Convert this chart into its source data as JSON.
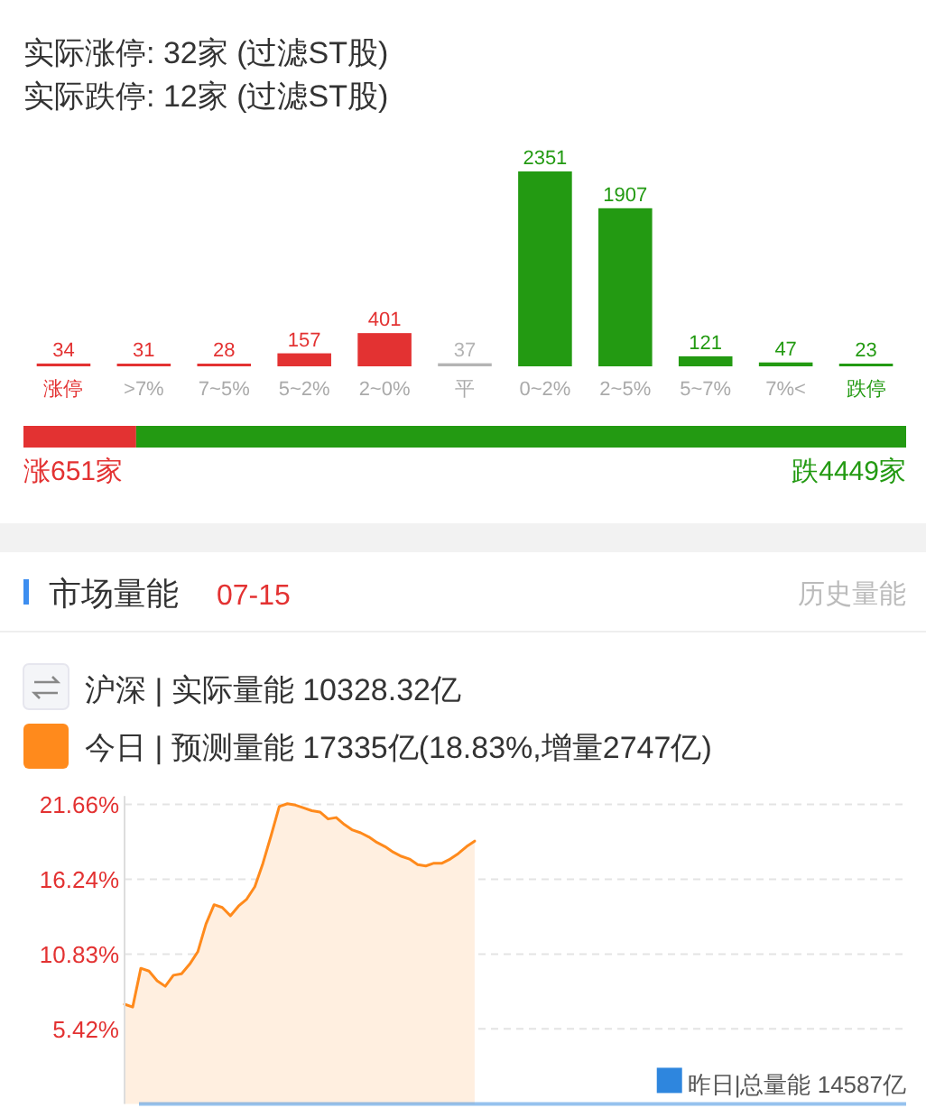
{
  "chart_data": [
    {
      "type": "bar",
      "annotations": [
        "实际涨停: 32家 (过滤ST股)",
        "实际跌停: 12家 (过滤ST股)"
      ],
      "categories": [
        "涨停",
        ">7%",
        "7~5%",
        "5~2%",
        "2~0%",
        "平",
        "0~2%",
        "2~5%",
        "5~7%",
        "7%<",
        "跌停"
      ],
      "values": [
        34,
        31,
        28,
        157,
        401,
        37,
        2351,
        1907,
        121,
        47,
        23
      ],
      "colors": [
        "#e33232",
        "#e33232",
        "#e33232",
        "#e33232",
        "#e33232",
        "#b4b4b4",
        "#239a12",
        "#239a12",
        "#239a12",
        "#239a12",
        "#239a12"
      ],
      "data_labels": true
    },
    {
      "type": "bar",
      "orientation": "horizontal",
      "stacked": true,
      "categories": [
        null
      ],
      "series": [
        {
          "color": "#e33232",
          "values": [
            651
          ],
          "value_labels": [
            "涨651家"
          ]
        },
        {
          "color": "#239a12",
          "values": [
            4449
          ],
          "value_labels": [
            "跌4449家"
          ]
        }
      ]
    },
    {
      "type": "area",
      "title": "市场量能",
      "subtitle": "07-15",
      "annotations": [
        "历史量能",
        "沪深 | 实际量能 10328.32亿",
        "今日 | 预测量能 17335亿(18.83%,增量2747亿)"
      ],
      "categories": [
        null,
        null,
        null,
        null,
        null,
        null,
        null,
        null,
        null,
        null,
        null,
        null,
        null,
        null,
        null,
        null,
        null,
        null,
        null,
        null,
        null,
        null,
        null,
        null,
        null,
        null,
        null,
        null,
        null,
        null,
        null,
        null,
        null,
        null,
        null,
        null,
        null,
        null,
        null,
        null,
        null,
        null,
        null,
        null,
        null,
        null,
        null,
        null,
        null,
        null,
        null,
        null,
        null,
        null,
        null,
        null,
        null,
        null,
        null,
        null,
        null,
        null,
        null,
        null,
        null,
        null,
        null,
        null,
        null,
        null,
        null,
        null,
        null,
        null,
        null,
        null,
        null,
        null,
        null,
        null,
        null,
        null,
        null,
        null,
        null,
        null,
        null,
        null,
        null,
        null,
        null,
        null,
        null,
        null,
        null,
        null,
        null
      ],
      "values": [
        7.2,
        7.0,
        9.8,
        9.6,
        8.9,
        8.5,
        9.3,
        9.4,
        10.1,
        11.0,
        13.0,
        14.4,
        14.2,
        13.6,
        14.3,
        14.8,
        15.7,
        17.4,
        19.4,
        21.5,
        21.7,
        21.6,
        21.4,
        21.2,
        21.1,
        20.6,
        20.7,
        20.2,
        19.8,
        19.6,
        19.3,
        18.9,
        18.6,
        18.2,
        17.9,
        17.7,
        17.3,
        17.2,
        17.4,
        17.4,
        17.7,
        18.1,
        18.6,
        19.0,
        null,
        null,
        null,
        null,
        null,
        null,
        null,
        null,
        null,
        null,
        null,
        null,
        null,
        null,
        null,
        null,
        null,
        null,
        null,
        null,
        null,
        null,
        null,
        null,
        null,
        null,
        null,
        null,
        null,
        null,
        null,
        null,
        null,
        null,
        null,
        null,
        null,
        null,
        null,
        null,
        null,
        null,
        null,
        null,
        null,
        null,
        null,
        null,
        null,
        null,
        null,
        null,
        null
      ],
      "color": "#ff8a1c",
      "ylim": [
        0,
        22
      ],
      "yticks": [
        {
          "value": 5.42,
          "label": "5.42%"
        },
        {
          "value": 10.83,
          "label": "10.83%"
        },
        {
          "value": 16.24,
          "label": "16.24%"
        },
        {
          "value": 21.66,
          "label": "21.66%"
        }
      ],
      "tick_labels": "y",
      "grid": "y",
      "ref_lines": [
        {
          "axis": "y",
          "value": 0,
          "label": "昨日|总量能 14587亿",
          "color": "#2e86de"
        }
      ]
    }
  ]
}
